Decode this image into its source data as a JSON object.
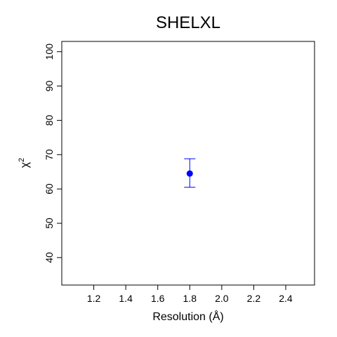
{
  "chart_data": {
    "type": "scatter",
    "title": "SHELXL",
    "xlabel": "Resolution (Å)",
    "ylabel": "χ",
    "ylabel_superscript": "2",
    "xlim": [
      1.0,
      2.58
    ],
    "ylim": [
      32,
      103
    ],
    "x_ticks": [
      "1.2",
      "1.4",
      "1.6",
      "1.8",
      "2.0",
      "2.2",
      "2.4"
    ],
    "y_ticks": [
      "40",
      "50",
      "60",
      "70",
      "80",
      "90",
      "100"
    ],
    "grid": false,
    "points": [
      {
        "x": 1.8,
        "y": 64.5,
        "y_low": 60.5,
        "y_high": 68.8
      }
    ],
    "colors": {
      "point": "#0000ff",
      "errorbar": "#0000ff",
      "axis": "#000000"
    }
  }
}
